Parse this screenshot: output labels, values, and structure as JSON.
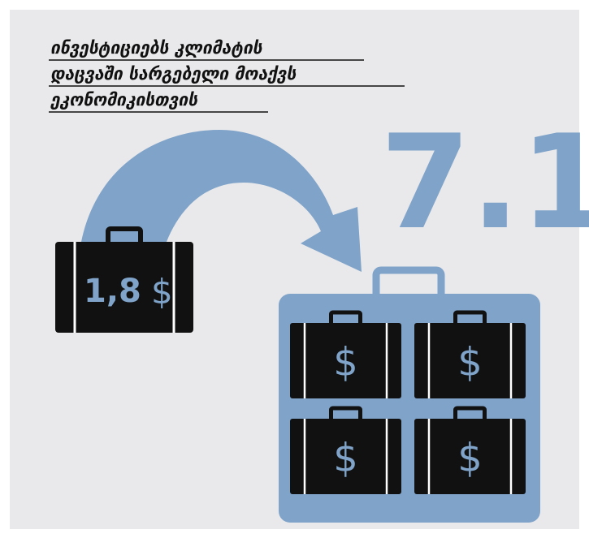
{
  "title_lines": [
    "ინვესტიციებს კლიმატის",
    "დაცვაში სარგებელი მოაქვს",
    "ეკონომიკისთვის"
  ],
  "small_case": {
    "amount": "1,8",
    "currency": "$"
  },
  "big_number": "7.1",
  "cases": [
    "$",
    "$",
    "$",
    "$"
  ]
}
